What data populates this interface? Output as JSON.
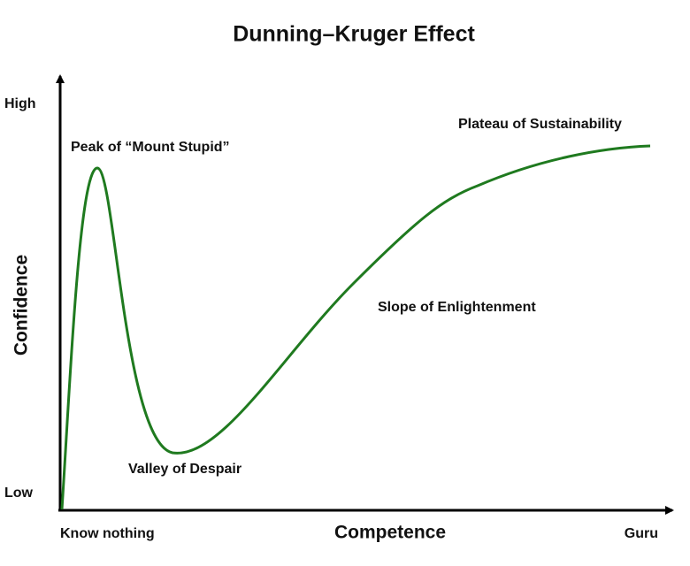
{
  "title": "Dunning–Kruger Effect",
  "axes": {
    "y_label": "Confidence",
    "y_high": "High",
    "y_low": "Low",
    "x_label": "Competence",
    "x_low": "Know nothing",
    "x_high": "Guru"
  },
  "annotations": [
    "Peak of “Mount Stupid”",
    "Valley of Despair",
    "Slope of Enlightenment",
    "Plateau of Sustainability"
  ]
}
